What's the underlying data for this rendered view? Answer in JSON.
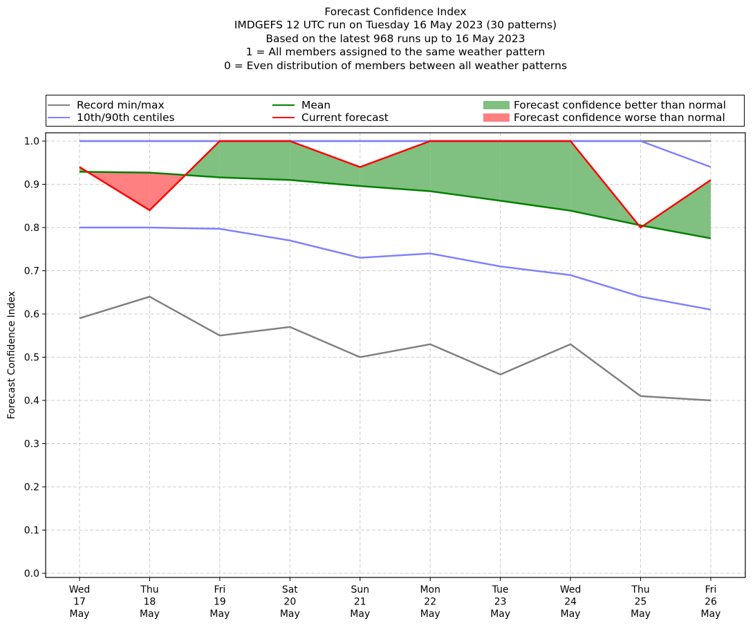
{
  "chart_data": {
    "type": "line",
    "title": "Forecast Confidence Index",
    "subtitle_lines": [
      "IMDGEFS 12 UTC run on Tuesday 16 May 2023 (30 patterns)",
      "Based on the latest 968 runs up to 16 May 2023",
      "1 = All members assigned to the same weather pattern",
      "0 = Even distribution of members between all weather patterns"
    ],
    "xlabel": "",
    "ylabel": "Forecast Confidence Index",
    "ylim": [
      0.0,
      1.0
    ],
    "yticks": [
      "0.0",
      "0.1",
      "0.2",
      "0.3",
      "0.4",
      "0.5",
      "0.6",
      "0.7",
      "0.8",
      "0.9",
      "1.0"
    ],
    "categories": [
      [
        "Wed",
        "17",
        "May"
      ],
      [
        "Thu",
        "18",
        "May"
      ],
      [
        "Fri",
        "19",
        "May"
      ],
      [
        "Sat",
        "20",
        "May"
      ],
      [
        "Sun",
        "21",
        "May"
      ],
      [
        "Mon",
        "22",
        "May"
      ],
      [
        "Tue",
        "23",
        "May"
      ],
      [
        "Wed",
        "24",
        "May"
      ],
      [
        "Thu",
        "25",
        "May"
      ],
      [
        "Fri",
        "26",
        "May"
      ]
    ],
    "grid": true,
    "legend_position": "top (above plot, 3 columns)",
    "series": [
      {
        "name": "Record min",
        "legend": "Record min/max",
        "color": "#808080",
        "values": [
          0.59,
          0.64,
          0.55,
          0.57,
          0.5,
          0.53,
          0.46,
          0.53,
          0.41,
          0.4
        ]
      },
      {
        "name": "Record max",
        "legend": null,
        "color": "#808080",
        "values": [
          1.0,
          1.0,
          1.0,
          1.0,
          1.0,
          1.0,
          1.0,
          1.0,
          1.0,
          1.0
        ]
      },
      {
        "name": "10th centile",
        "legend": "10th/90th centiles",
        "color": "#8080ff",
        "values": [
          0.8,
          0.8,
          0.797,
          0.77,
          0.73,
          0.74,
          0.71,
          0.69,
          0.64,
          0.61
        ]
      },
      {
        "name": "90th centile",
        "legend": null,
        "color": "#8080ff",
        "values": [
          1.0,
          1.0,
          1.0,
          1.0,
          1.0,
          1.0,
          1.0,
          1.0,
          1.0,
          0.94
        ]
      },
      {
        "name": "Mean",
        "legend": "Mean",
        "color": "#008000",
        "values": [
          0.929,
          0.927,
          0.916,
          0.91,
          0.896,
          0.884,
          0.862,
          0.839,
          0.805,
          0.775
        ]
      },
      {
        "name": "Current forecast",
        "legend": "Current forecast",
        "color": "#ff0000",
        "values": [
          0.94,
          0.84,
          1.0,
          1.0,
          0.94,
          1.0,
          1.0,
          1.0,
          0.8,
          0.91
        ]
      }
    ],
    "fills": [
      {
        "name": "Forecast confidence better than normal",
        "color": "#80c080",
        "condition": "current >= mean"
      },
      {
        "name": "Forecast confidence worse than normal",
        "color": "#ff8080",
        "condition": "current < mean"
      }
    ]
  },
  "legend": {
    "record": "Record min/max",
    "centiles": "10th/90th centiles",
    "mean": "Mean",
    "current": "Current forecast",
    "better": "Forecast confidence better than normal",
    "worse": "Forecast confidence worse than normal"
  }
}
